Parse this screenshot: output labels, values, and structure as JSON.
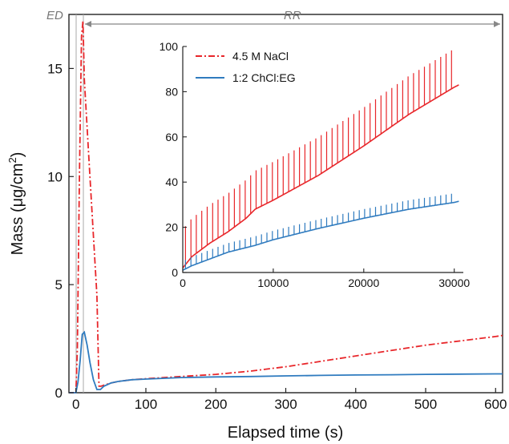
{
  "chart_data": [
    {
      "type": "line",
      "xlabel": "Elapsed time (s)",
      "ylabel_main": "Mass (μg/cm",
      "ylabel_sup": "2",
      "ylabel_end": ")",
      "xlim": [
        -10,
        610
      ],
      "ylim": [
        0,
        17.5
      ],
      "xticks": [
        0,
        100,
        200,
        300,
        400,
        500,
        600
      ],
      "yticks": [
        0,
        5,
        10,
        15
      ],
      "grid": false,
      "annotations": {
        "ed_label": "ED",
        "rr_label": "RR",
        "ed_range": [
          -10,
          10
        ],
        "rr_range": [
          10,
          610
        ]
      },
      "series": [
        {
          "name": "4.5 M NaCl",
          "color": "#e8262a",
          "style": "dash-dot",
          "x": [
            -10,
            0,
            2,
            5,
            8,
            10,
            12,
            20,
            30,
            33,
            36,
            40,
            50,
            60,
            80,
            100,
            150,
            200,
            250,
            300,
            350,
            400,
            450,
            500,
            550,
            600,
            610
          ],
          "y": [
            0,
            0,
            2,
            10,
            16.5,
            17.2,
            14.5,
            10,
            4.5,
            0.3,
            0.3,
            0.35,
            0.45,
            0.52,
            0.6,
            0.65,
            0.75,
            0.85,
            1.0,
            1.2,
            1.45,
            1.7,
            1.95,
            2.2,
            2.4,
            2.6,
            2.65
          ]
        },
        {
          "name": "1:2 ChCl:EG",
          "color": "#2f7bbf",
          "style": "solid",
          "x": [
            -10,
            0,
            3,
            6,
            9,
            12,
            16,
            20,
            25,
            30,
            35,
            40,
            50,
            60,
            80,
            100,
            150,
            200,
            250,
            300,
            350,
            400,
            450,
            500,
            550,
            600,
            610
          ],
          "y": [
            0,
            0,
            0.5,
            1.5,
            2.7,
            2.8,
            2.2,
            1.4,
            0.6,
            0.15,
            0.15,
            0.3,
            0.45,
            0.52,
            0.6,
            0.63,
            0.7,
            0.73,
            0.75,
            0.78,
            0.8,
            0.82,
            0.83,
            0.85,
            0.86,
            0.87,
            0.87
          ]
        }
      ]
    },
    {
      "type": "line",
      "xlim": [
        0,
        31000
      ],
      "ylim": [
        0,
        100
      ],
      "xticks": [
        0,
        10000,
        20000,
        30000
      ],
      "yticks": [
        0,
        20,
        40,
        60,
        80,
        100
      ],
      "grid": false,
      "legend_placement": "top-left",
      "series": [
        {
          "name": "4.5 M NaCl",
          "color": "#e8262a",
          "style": "solid",
          "base_x": [
            0,
            1000,
            3000,
            5000,
            7000,
            8000,
            10000,
            15000,
            20000,
            25000,
            30000,
            30500
          ],
          "base_y": [
            2,
            7,
            13,
            18,
            24,
            28,
            32,
            43,
            56,
            70,
            82,
            83
          ],
          "spike_interval": 600,
          "spike_start": 300,
          "spike_end": 30200,
          "spike_height": 17
        },
        {
          "name": "1:2 ChCl:EG",
          "color": "#2f7bbf",
          "style": "solid",
          "base_x": [
            0,
            1000,
            3000,
            5000,
            8000,
            10000,
            15000,
            20000,
            25000,
            30000,
            30500
          ],
          "base_y": [
            1,
            3,
            6,
            9,
            12,
            14.5,
            19.5,
            24,
            28,
            31,
            31.5
          ],
          "spike_interval": 600,
          "spike_start": 300,
          "spike_end": 30200,
          "spike_height": 4
        }
      ]
    }
  ]
}
